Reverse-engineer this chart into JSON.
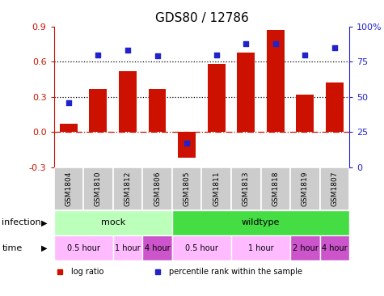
{
  "title": "GDS80 / 12786",
  "samples": [
    "GSM1804",
    "GSM1810",
    "GSM1812",
    "GSM1806",
    "GSM1805",
    "GSM1811",
    "GSM1813",
    "GSM1818",
    "GSM1819",
    "GSM1807"
  ],
  "log_ratio": [
    0.07,
    0.37,
    0.52,
    0.37,
    -0.22,
    0.58,
    0.68,
    0.87,
    0.32,
    0.42
  ],
  "percentile_raw": [
    46,
    80,
    83,
    79,
    17,
    80,
    88,
    88,
    80,
    85
  ],
  "bar_color": "#cc1100",
  "dot_color": "#2222cc",
  "ylim_left": [
    -0.3,
    0.9
  ],
  "ylim_right": [
    0,
    100
  ],
  "yticks_left": [
    -0.3,
    0.0,
    0.3,
    0.6,
    0.9
  ],
  "yticks_right": [
    0,
    25,
    50,
    75,
    100
  ],
  "hlines": [
    0.3,
    0.6
  ],
  "hline0": 0.0,
  "infection_labels": [
    {
      "label": "mock",
      "start": 0,
      "end": 4,
      "color": "#bbffbb"
    },
    {
      "label": "wildtype",
      "start": 4,
      "end": 10,
      "color": "#44dd44"
    }
  ],
  "time_labels": [
    {
      "label": "0.5 hour",
      "start": 0,
      "end": 2,
      "color": "#ffbbff"
    },
    {
      "label": "1 hour",
      "start": 2,
      "end": 3,
      "color": "#ffbbff"
    },
    {
      "label": "4 hour",
      "start": 3,
      "end": 4,
      "color": "#cc55cc"
    },
    {
      "label": "0.5 hour",
      "start": 4,
      "end": 6,
      "color": "#ffbbff"
    },
    {
      "label": "1 hour",
      "start": 6,
      "end": 8,
      "color": "#ffbbff"
    },
    {
      "label": "2 hour",
      "start": 8,
      "end": 9,
      "color": "#cc55cc"
    },
    {
      "label": "4 hour",
      "start": 9,
      "end": 10,
      "color": "#cc55cc"
    }
  ],
  "legend_items": [
    {
      "label": "log ratio",
      "color": "#cc1100"
    },
    {
      "label": "percentile rank within the sample",
      "color": "#2222cc"
    }
  ],
  "infection_label": "infection",
  "time_label": "time",
  "sample_box_color": "#cccccc",
  "left_axis_color": "#cc1100",
  "right_axis_color": "#2222cc",
  "zero_line_color": "#cc1100",
  "hline_color": "black"
}
